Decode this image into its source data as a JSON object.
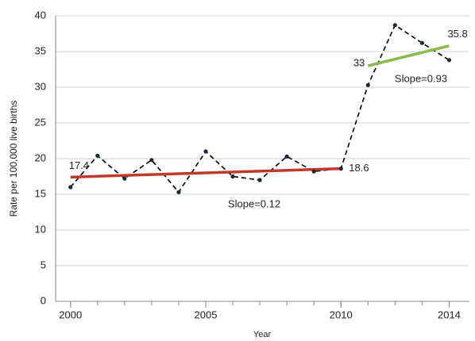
{
  "chart_data": {
    "type": "line",
    "y_label": "Rate per 100,000 live births",
    "x_label": "Year",
    "x": [
      2000,
      2001,
      2002,
      2003,
      2004,
      2005,
      2006,
      2007,
      2008,
      2009,
      2010,
      2011,
      2012,
      2013,
      2014
    ],
    "series": [
      {
        "color": "#000000",
        "dashed": true,
        "values": [
          16.0,
          20.4,
          17.2,
          19.8,
          15.3,
          21.0,
          17.5,
          17.0,
          20.3,
          18.2,
          18.6,
          30.3,
          38.7,
          36.2,
          33.8
        ]
      }
    ],
    "trend_lines": [
      {
        "x": [
          2000,
          2010
        ],
        "values": [
          17.4,
          18.6
        ],
        "color": "#c0392b",
        "label": "Slope=0.12"
      },
      {
        "x": [
          2011,
          2014
        ],
        "values": [
          33.0,
          35.8
        ],
        "color": "#8db84a",
        "label": "Slope=0.93"
      }
    ],
    "xlim": [
      1999.45,
      2014.75
    ],
    "xticks": [
      2000,
      2005,
      2010,
      2014
    ],
    "ylim": [
      0,
      40
    ],
    "yticks": [
      0,
      5,
      10,
      15,
      20,
      25,
      30,
      35,
      40
    ],
    "grid": true
  }
}
